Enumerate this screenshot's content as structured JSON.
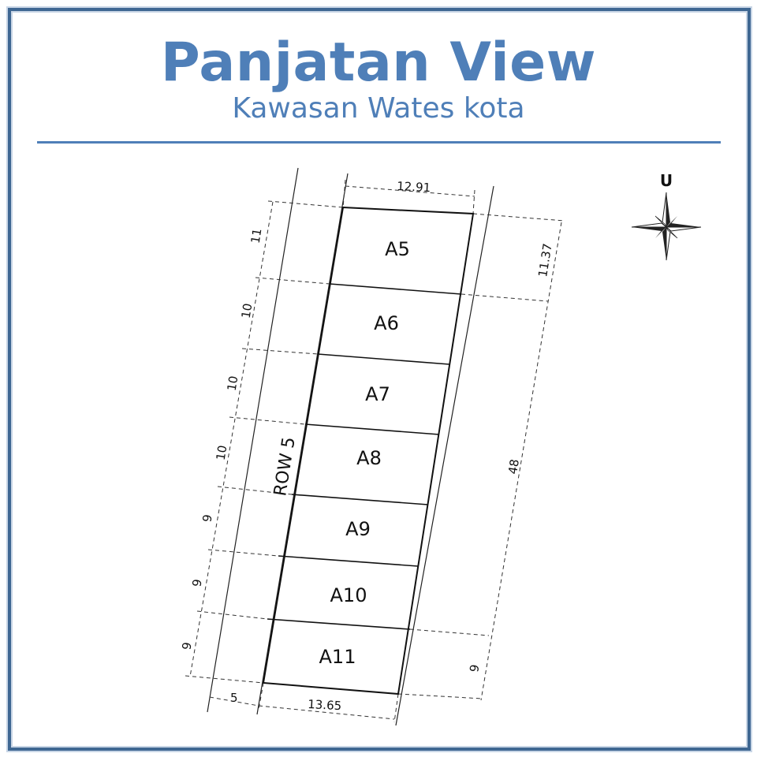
{
  "header": {
    "title": "Panjatan View",
    "subtitle": "Kawasan Wates kota"
  },
  "compass": {
    "label": "U"
  },
  "plan": {
    "row_label": "ROW 5",
    "top_width": "12.91",
    "bottom_width": "13.65",
    "road_width": "5",
    "right_top_dim": "11.37",
    "right_total_dim": "48",
    "right_bottom_dim": "9",
    "lots": [
      {
        "id": "A5",
        "depth": "11"
      },
      {
        "id": "A6",
        "depth": "10"
      },
      {
        "id": "A7",
        "depth": "10"
      },
      {
        "id": "A8",
        "depth": "10"
      },
      {
        "id": "A9",
        "depth": "9"
      },
      {
        "id": "A10",
        "depth": "9"
      },
      {
        "id": "A11",
        "depth": "9"
      }
    ]
  },
  "colors": {
    "accent": "#4f7fb8",
    "frame": "#3f6792",
    "ink": "#111111"
  }
}
